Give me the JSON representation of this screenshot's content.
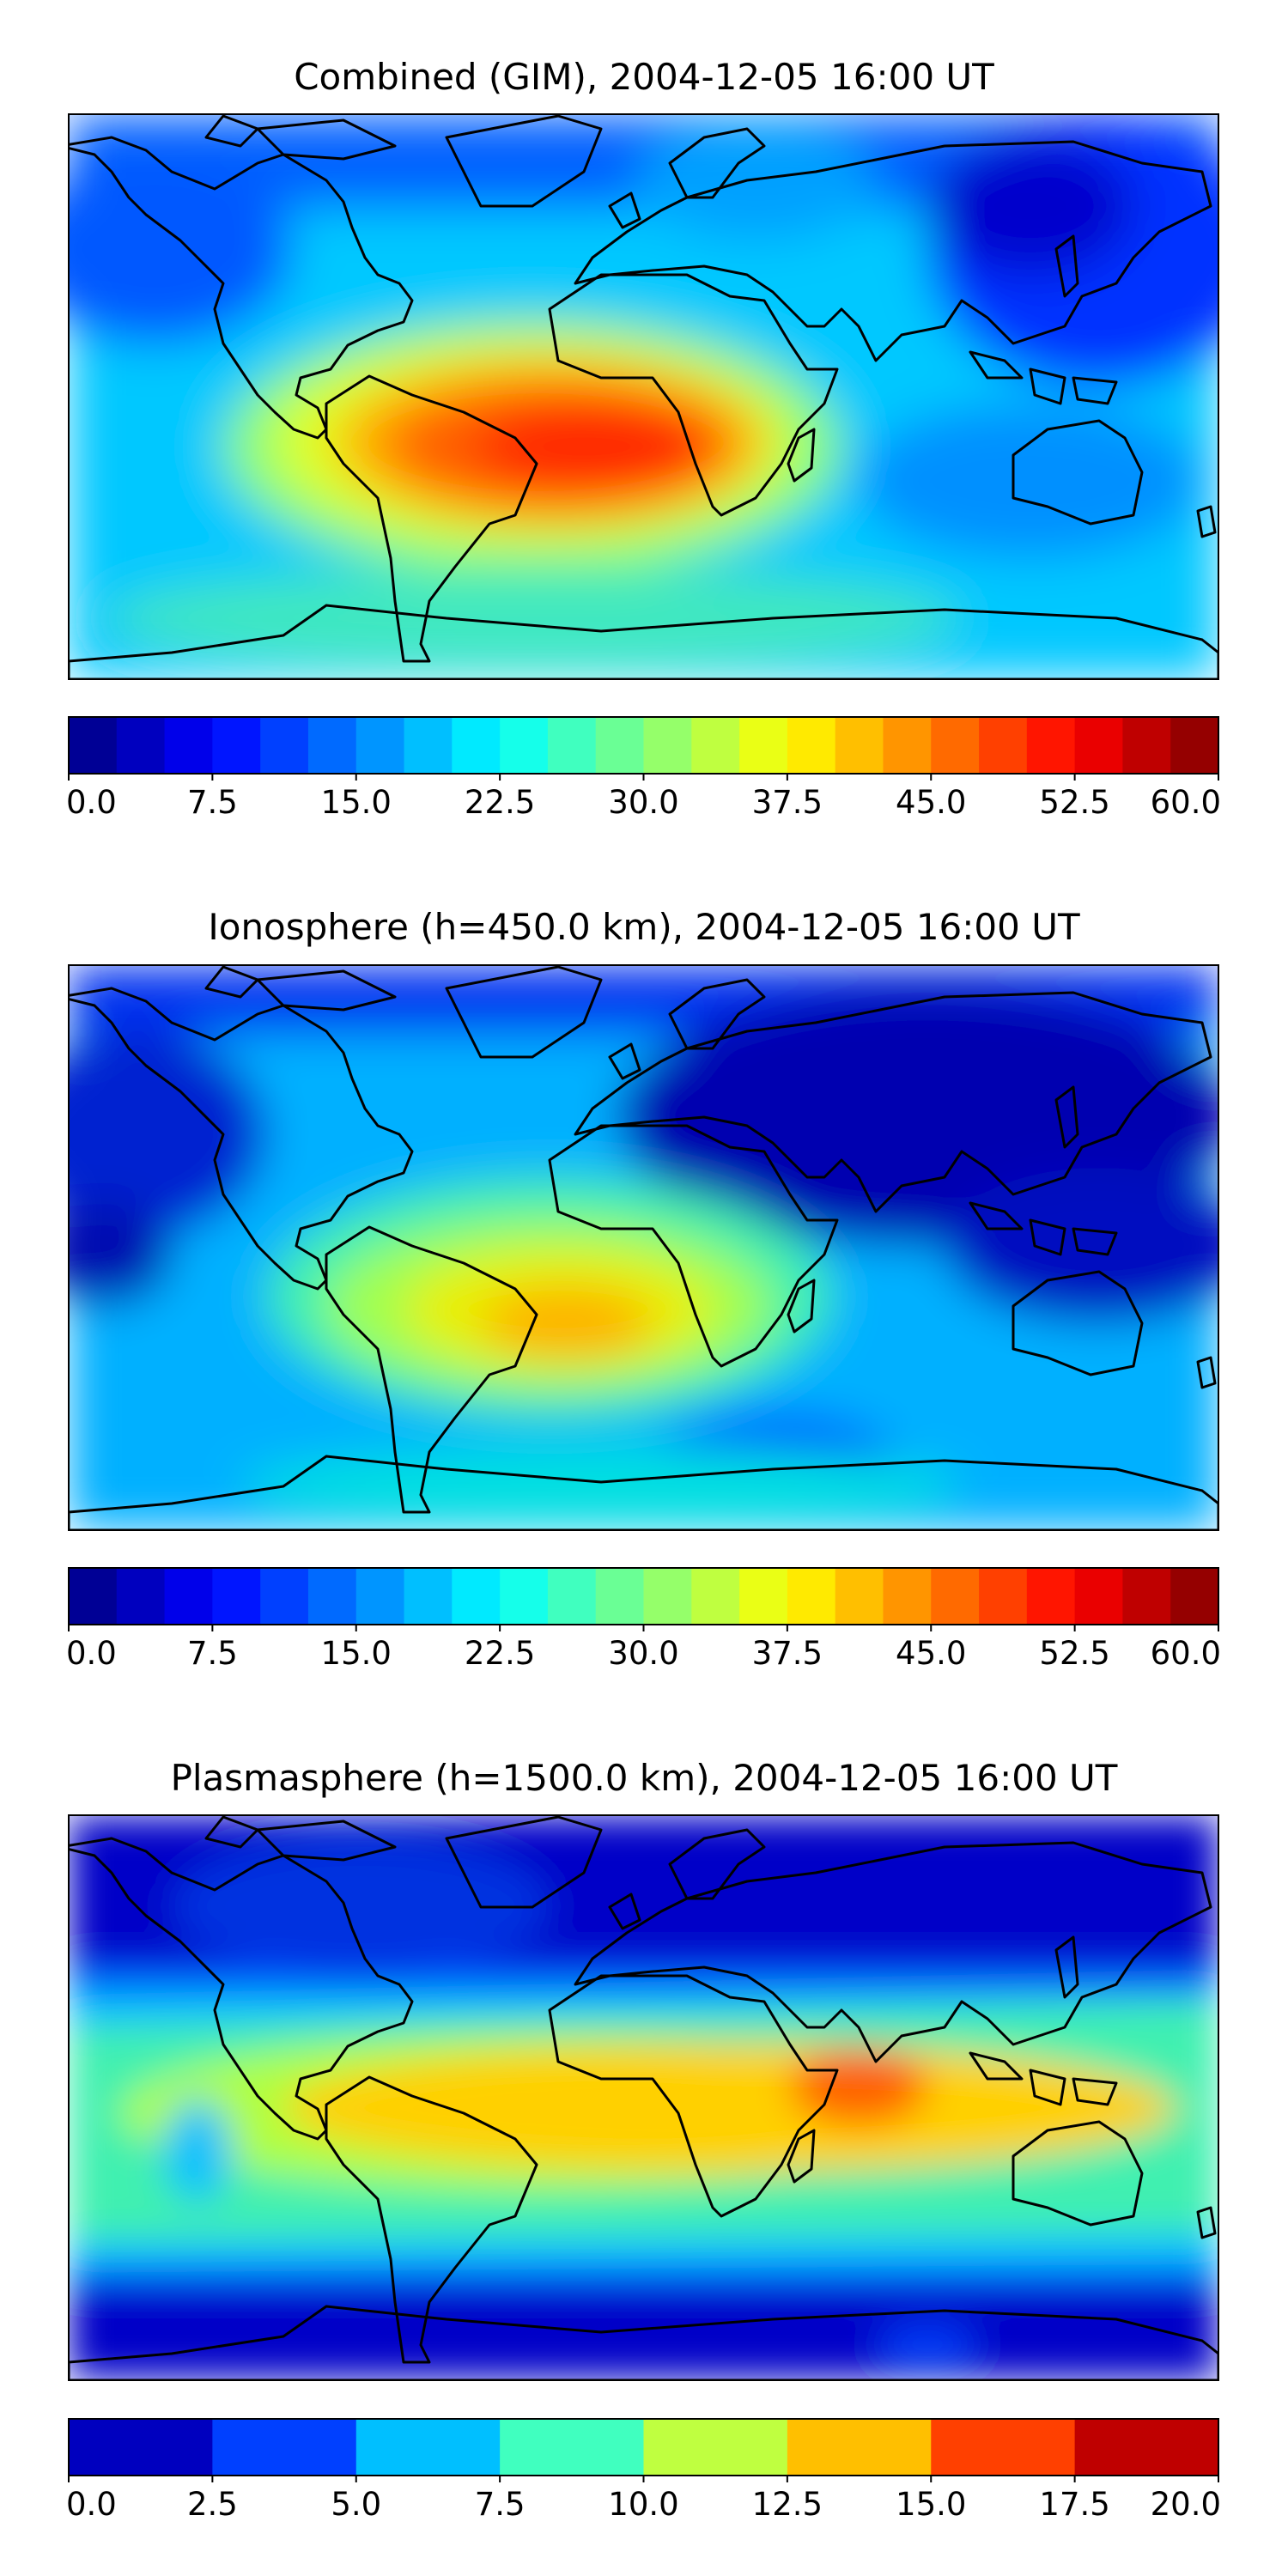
{
  "chart_data": [
    {
      "type": "heatmap",
      "title": "Combined (GIM), 2004-12-05 16:00 UT",
      "projection": "global lon/lat map with coastlines",
      "colormap": "jet",
      "colorbar": {
        "min": 0.0,
        "max": 60.0,
        "levels": 24,
        "ticks": [
          "0.0",
          "7.5",
          "15.0",
          "22.5",
          "30.0",
          "37.5",
          "45.0",
          "52.5",
          "60.0"
        ]
      },
      "features": [
        {
          "lon": -30,
          "lat": -12,
          "value": 55
        },
        {
          "lon": 5,
          "lat": -15,
          "value": 52
        },
        {
          "lon": -55,
          "lat": -15,
          "value": 45
        },
        {
          "lon": 40,
          "lat": -15,
          "value": 38
        },
        {
          "lon": 120,
          "lat": 45,
          "value": 8
        },
        {
          "lon": -150,
          "lat": 50,
          "value": 12
        }
      ]
    },
    {
      "type": "heatmap",
      "title": "Ionosphere  (h=450.0 km), 2004-12-05 16:00 UT",
      "projection": "global lon/lat map with coastlines",
      "colormap": "jet",
      "colorbar": {
        "min": 0.0,
        "max": 60.0,
        "levels": 24,
        "ticks": [
          "0.0",
          "7.5",
          "15.0",
          "22.5",
          "30.0",
          "37.5",
          "45.0",
          "52.5",
          "60.0"
        ]
      },
      "features": [
        {
          "lon": -30,
          "lat": -15,
          "value": 42
        },
        {
          "lon": 5,
          "lat": -10,
          "value": 35
        },
        {
          "lon": -55,
          "lat": -5,
          "value": 32
        },
        {
          "lon": 90,
          "lat": 40,
          "value": 3
        },
        {
          "lon": 150,
          "lat": 10,
          "value": 5
        }
      ]
    },
    {
      "type": "heatmap",
      "title": "Plasmasphere (h=1500.0 km), 2004-12-05 16:00 UT",
      "projection": "global lon/lat map with coastlines",
      "colormap": "jet",
      "colorbar": {
        "min": 0.0,
        "max": 20.0,
        "levels": 8,
        "ticks": [
          "0.0",
          "2.5",
          "5.0",
          "7.5",
          "10.0",
          "12.5",
          "15.0",
          "17.5",
          "20.0"
        ]
      },
      "features": [
        {
          "lon": 48,
          "lat": 8,
          "value": 16
        },
        {
          "lon": 60,
          "lat": 5,
          "value": 14
        },
        {
          "lon": 0,
          "lat": 5,
          "value": 13
        },
        {
          "lon": -90,
          "lat": 0,
          "value": 11
        },
        {
          "lon": -100,
          "lat": 60,
          "value": 1
        },
        {
          "lon": 0,
          "lat": -70,
          "value": 1
        }
      ]
    }
  ]
}
